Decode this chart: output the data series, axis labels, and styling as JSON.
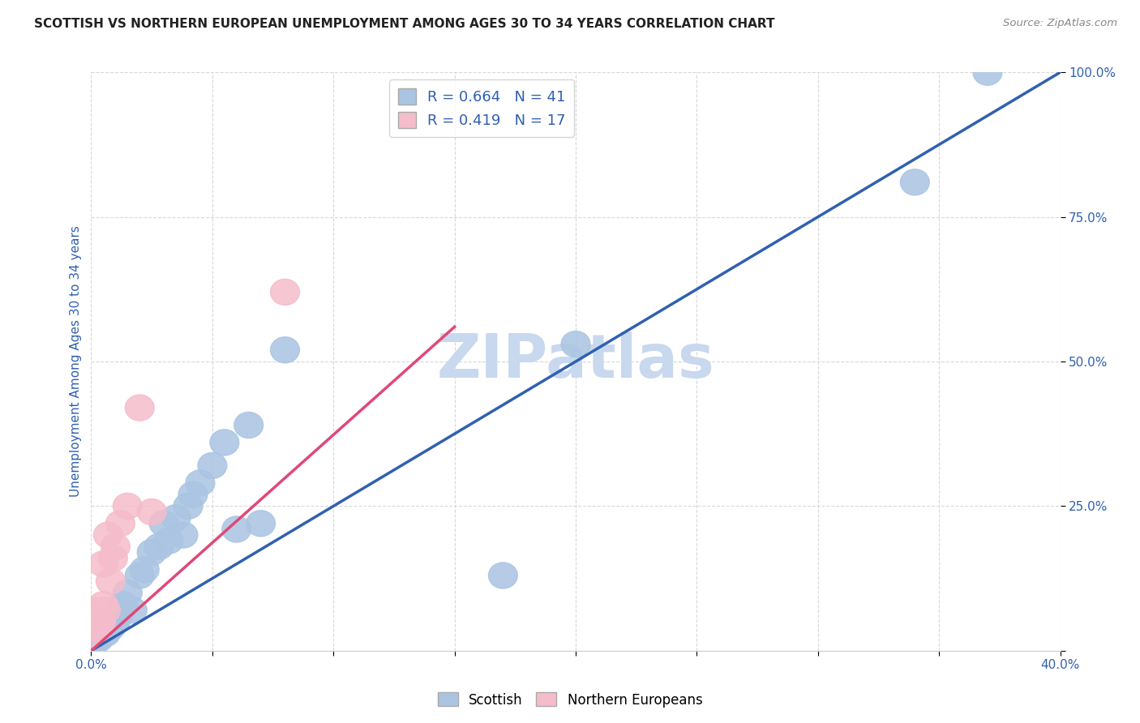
{
  "title": "SCOTTISH VS NORTHERN EUROPEAN UNEMPLOYMENT AMONG AGES 30 TO 34 YEARS CORRELATION CHART",
  "source": "Source: ZipAtlas.com",
  "ylabel": "Unemployment Among Ages 30 to 34 years",
  "xlim": [
    0,
    0.4
  ],
  "ylim": [
    0,
    1.0
  ],
  "xticks": [
    0.0,
    0.05,
    0.1,
    0.15,
    0.2,
    0.25,
    0.3,
    0.35,
    0.4
  ],
  "yticks": [
    0.0,
    0.25,
    0.5,
    0.75,
    1.0
  ],
  "scottish_R": 0.664,
  "scottish_N": 41,
  "northern_R": 0.419,
  "northern_N": 17,
  "scottish_color": "#aac4e2",
  "northern_color": "#f5bccb",
  "scottish_line_color": "#3060b0",
  "northern_line_color": "#e04878",
  "legend_label_scottish": "Scottish",
  "legend_label_northern": "Northern Europeans",
  "scottish_x": [
    0.001,
    0.002,
    0.002,
    0.003,
    0.003,
    0.004,
    0.004,
    0.005,
    0.005,
    0.006,
    0.006,
    0.007,
    0.008,
    0.009,
    0.01,
    0.011,
    0.012,
    0.013,
    0.015,
    0.017,
    0.02,
    0.022,
    0.025,
    0.028,
    0.03,
    0.032,
    0.035,
    0.038,
    0.04,
    0.042,
    0.045,
    0.05,
    0.055,
    0.06,
    0.065,
    0.07,
    0.08,
    0.17,
    0.2,
    0.34,
    0.37
  ],
  "scottish_y": [
    0.02,
    0.02,
    0.03,
    0.02,
    0.03,
    0.03,
    0.04,
    0.03,
    0.04,
    0.03,
    0.05,
    0.04,
    0.04,
    0.05,
    0.05,
    0.06,
    0.07,
    0.08,
    0.1,
    0.07,
    0.13,
    0.14,
    0.17,
    0.18,
    0.22,
    0.19,
    0.23,
    0.2,
    0.25,
    0.27,
    0.29,
    0.32,
    0.36,
    0.21,
    0.39,
    0.22,
    0.52,
    0.13,
    0.53,
    0.81,
    1.0
  ],
  "northern_x": [
    0.001,
    0.002,
    0.003,
    0.003,
    0.004,
    0.005,
    0.005,
    0.006,
    0.007,
    0.008,
    0.009,
    0.01,
    0.012,
    0.015,
    0.02,
    0.025,
    0.08
  ],
  "northern_y": [
    0.03,
    0.05,
    0.04,
    0.07,
    0.05,
    0.08,
    0.15,
    0.07,
    0.2,
    0.12,
    0.16,
    0.18,
    0.22,
    0.25,
    0.42,
    0.24,
    0.62
  ],
  "scottish_line_x0": 0.0,
  "scottish_line_y0": 0.0,
  "scottish_line_x1": 0.4,
  "scottish_line_y1": 1.0,
  "northern_line_x0": 0.0,
  "northern_line_y0": 0.0,
  "northern_line_x1": 0.15,
  "northern_line_y1": 0.56,
  "diag_line_x0": 0.0,
  "diag_line_y0": 0.0,
  "diag_line_x1": 0.4,
  "diag_line_y1": 1.0,
  "background_color": "#ffffff",
  "grid_color": "#d8d8d8",
  "title_color": "#222222",
  "tick_label_color": "#3060b0",
  "watermark": "ZIPatlas",
  "watermark_color": "#c8d8ee"
}
